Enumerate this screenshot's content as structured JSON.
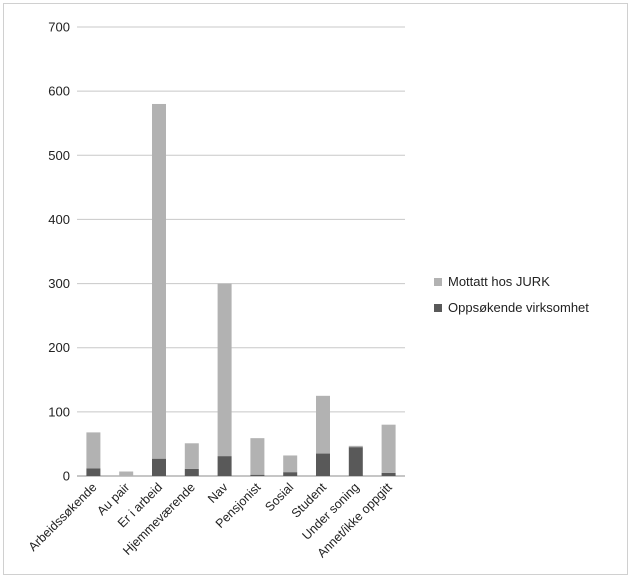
{
  "chart_data": {
    "type": "bar",
    "stacked": true,
    "categories": [
      "Arbeidssøkende",
      "Au pair",
      "Er i arbeid",
      "Hjemmeværende",
      "Nav",
      "Pensjonist",
      "Sosial",
      "Student",
      "Under soning",
      "Annet/ikke oppgitt"
    ],
    "series": [
      {
        "name": "Oppsøkende virksomhet",
        "color": "#595959",
        "values": [
          12,
          0,
          27,
          11,
          31,
          2,
          6,
          35,
          45,
          5
        ]
      },
      {
        "name": "Mottatt hos JURK",
        "color": "#b2b2b2",
        "values": [
          56,
          7,
          553,
          40,
          269,
          57,
          26,
          90,
          2,
          75
        ]
      }
    ],
    "ylim": [
      0,
      700
    ],
    "yticks": [
      0,
      100,
      200,
      300,
      400,
      500,
      600,
      700
    ],
    "grid": true,
    "legend_position": "right"
  }
}
